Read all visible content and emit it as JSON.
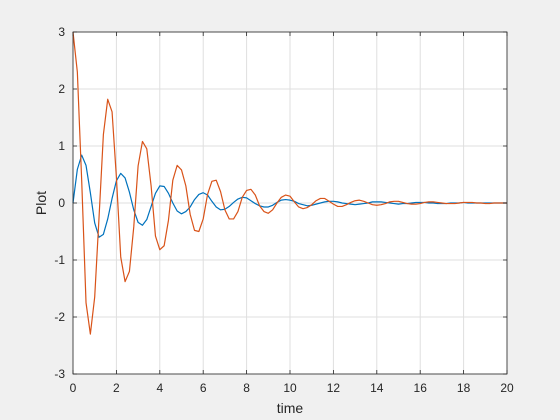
{
  "chart_data": {
    "type": "line",
    "title": "",
    "xlabel": "time",
    "ylabel": "Plot",
    "xlim": [
      0,
      20
    ],
    "ylim": [
      -3,
      3
    ],
    "grid": true,
    "x_ticks": [
      0,
      2,
      4,
      6,
      8,
      10,
      12,
      14,
      16,
      18,
      20
    ],
    "x_tick_labels": [
      "0",
      "2",
      "4",
      "6",
      "8",
      "10",
      "12",
      "14",
      "16",
      "18",
      "20"
    ],
    "y_ticks": [
      -3,
      -2,
      -1,
      0,
      1,
      2,
      3
    ],
    "y_tick_labels": [
      "-3",
      "-2",
      "-1",
      "0",
      "1",
      "2",
      "3"
    ],
    "x_step": 0.2,
    "series": [
      {
        "color": "#0072BD",
        "values": [
          0,
          0.59,
          0.84,
          0.66,
          0.18,
          -0.35,
          -0.6,
          -0.55,
          -0.28,
          0.08,
          0.39,
          0.52,
          0.44,
          0.19,
          -0.12,
          -0.34,
          -0.39,
          -0.29,
          -0.06,
          0.17,
          0.3,
          0.29,
          0.17,
          0,
          -0.14,
          -0.19,
          -0.15,
          -0.07,
          0.06,
          0.15,
          0.18,
          0.14,
          0.03,
          -0.07,
          -0.12,
          -0.11,
          -0.06,
          0.01,
          0.07,
          0.1,
          0.09,
          0.04,
          -0.01,
          -0.05,
          -0.07,
          -0.07,
          -0.04,
          0.01,
          0.05,
          0.06,
          0.05,
          0.03,
          -0.01,
          -0.03,
          -0.05,
          -0.04,
          -0.02,
          0,
          0.02,
          0.03,
          0.03,
          0.02,
          0,
          -0.01,
          -0.02,
          -0.03,
          -0.02,
          -0.01,
          0,
          0.02,
          0.02,
          0.02,
          0.01,
          0,
          -0.01,
          -0.02,
          -0.01,
          -0.01,
          0,
          0.01,
          0.01,
          0.01,
          0,
          0,
          -0.01,
          -0.01,
          -0.01,
          0,
          0,
          0,
          0.01,
          0,
          0,
          0,
          0,
          0,
          0,
          0,
          0,
          0,
          0
        ]
      },
      {
        "color": "#D95319",
        "values": [
          3,
          2.3,
          0.4,
          -1.75,
          -2.3,
          -1.65,
          -0.25,
          1.2,
          1.82,
          1.6,
          0.45,
          -0.95,
          -1.38,
          -1.2,
          -0.42,
          0.65,
          1.08,
          0.95,
          0.3,
          -0.58,
          -0.82,
          -0.75,
          -0.3,
          0.4,
          0.66,
          0.58,
          0.3,
          -0.2,
          -0.48,
          -0.5,
          -0.28,
          0.15,
          0.38,
          0.4,
          0.2,
          -0.12,
          -0.28,
          -0.28,
          -0.15,
          0.1,
          0.22,
          0.24,
          0.14,
          -0.05,
          -0.15,
          -0.18,
          -0.12,
          0,
          0.1,
          0.14,
          0.12,
          0.02,
          -0.07,
          -0.1,
          -0.08,
          -0.03,
          0.04,
          0.08,
          0.08,
          0.03,
          -0.02,
          -0.06,
          -0.06,
          -0.03,
          0.01,
          0.04,
          0.05,
          0.03,
          0,
          -0.03,
          -0.04,
          -0.03,
          -0.01,
          0.02,
          0.03,
          0.03,
          0.01,
          -0.01,
          -0.02,
          -0.02,
          -0.01,
          0.01,
          0.02,
          0.02,
          0.01,
          0,
          -0.01,
          -0.01,
          -0.01,
          0,
          0.01,
          0.01,
          0.01,
          0,
          0,
          -0.01,
          -0.01,
          0,
          0,
          0,
          0
        ]
      }
    ]
  }
}
